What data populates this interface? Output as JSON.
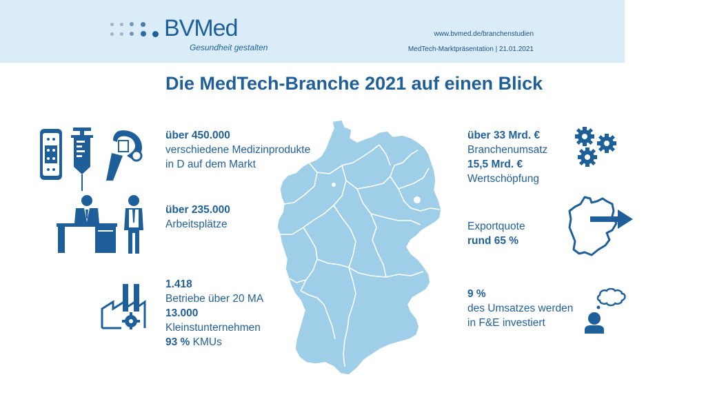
{
  "header": {
    "brand": "BVMed",
    "tagline": "Gesundheit gestalten",
    "url": "www.bvmed.de/branchenstudien",
    "presentation": "MedTech-Marktpräsentation |  21.01.2021"
  },
  "title": "Die MedTech-Branche 2021 auf einen Blick",
  "left": {
    "products": {
      "value": "über 450.000",
      "line1": "verschiedene Medizinprodukte",
      "line2": "in D auf dem Markt"
    },
    "jobs": {
      "value": "über 235.000",
      "label": "Arbeitsplätze"
    },
    "companies": {
      "value1": "1.418",
      "label1": "Betriebe über 20 MA",
      "value2": "13.000",
      "label2": "Kleinstunternehmen",
      "value3": "93 %",
      "label3": "KMUs"
    }
  },
  "right": {
    "revenue": {
      "value": "über 33 Mrd. €",
      "label": "Branchenumsatz",
      "value2": "15,5 Mrd. €",
      "label2": "Wertschöpfung"
    },
    "export": {
      "label": "Exportquote",
      "value": "rund 65 %"
    },
    "research": {
      "value": "9 %",
      "line1": "des Umsatzes werden",
      "line2": "in F&E investiert"
    }
  },
  "icons": [
    "bandage-icon",
    "syringe-icon",
    "prosthetic-hand-icon",
    "office-worker-icon",
    "doctor-icon",
    "factory-icon",
    "gears-icon",
    "export-map-icon",
    "thinking-person-icon",
    "germany-map"
  ],
  "colors": {
    "primary": "#1f5f99",
    "header_bg": "#d9ecf7",
    "map_fill": "#9fcfe8"
  }
}
